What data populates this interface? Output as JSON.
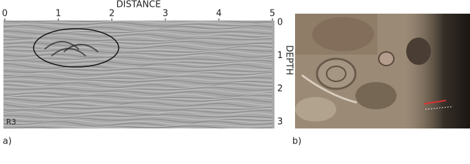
{
  "panel_a": {
    "label": "a)",
    "x_axis_title": "DISTANCE",
    "y_axis_title": "DEPTH",
    "xticks": [
      0,
      1,
      2,
      3,
      4,
      5
    ],
    "yticks": [
      0,
      1,
      2,
      3
    ],
    "profile_label": "R3"
  },
  "panel_b": {
    "label": "b)"
  }
}
